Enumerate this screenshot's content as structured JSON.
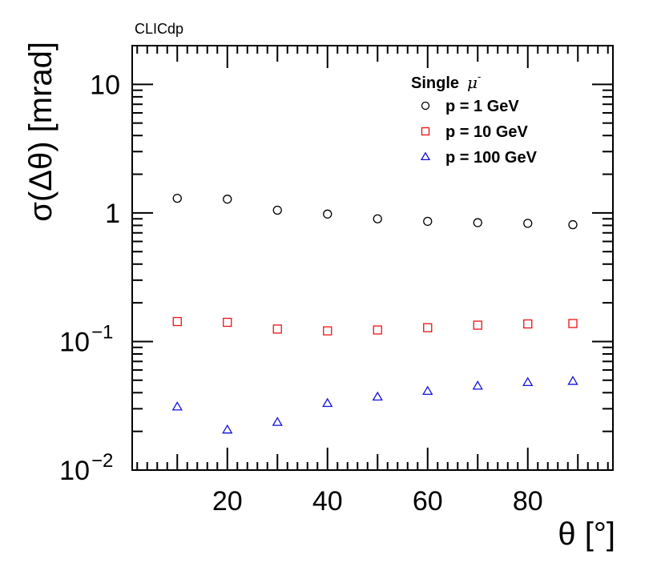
{
  "watermark": "CLICdp",
  "chart_data": {
    "type": "scatter",
    "title": "",
    "xlabel": "θ [°]",
    "ylabel": "σ(Δθ) [mrad]",
    "xlim": [
      1,
      97
    ],
    "ylim": [
      0.01,
      20
    ],
    "yscale": "log",
    "x_ticks": [
      20,
      40,
      60,
      80
    ],
    "y_ticks": [
      {
        "value": 0.01,
        "base": "10",
        "exp": "−2"
      },
      {
        "value": 0.1,
        "base": "10",
        "exp": "−1"
      },
      {
        "value": 1,
        "base": "1",
        "exp": ""
      },
      {
        "value": 10,
        "base": "10",
        "exp": ""
      }
    ],
    "legend": {
      "title": "Single",
      "title_symbol": "μ",
      "title_symbol_sup": "-",
      "position": "top-right"
    },
    "x": [
      10,
      20,
      30,
      40,
      50,
      60,
      70,
      80,
      89
    ],
    "series": [
      {
        "name": "p = 1 GeV",
        "marker": "circle",
        "color": "#000000",
        "values": [
          1.3,
          1.28,
          1.05,
          0.98,
          0.9,
          0.86,
          0.84,
          0.83,
          0.81
        ]
      },
      {
        "name": "p = 10 GeV",
        "marker": "square",
        "color": "#ee1111",
        "values": [
          0.143,
          0.141,
          0.125,
          0.121,
          0.123,
          0.128,
          0.134,
          0.137,
          0.138
        ]
      },
      {
        "name": "p = 100 GeV",
        "marker": "triangle",
        "color": "#1111dd",
        "values": [
          0.031,
          0.0205,
          0.0235,
          0.033,
          0.037,
          0.041,
          0.045,
          0.048,
          0.049
        ]
      }
    ]
  }
}
